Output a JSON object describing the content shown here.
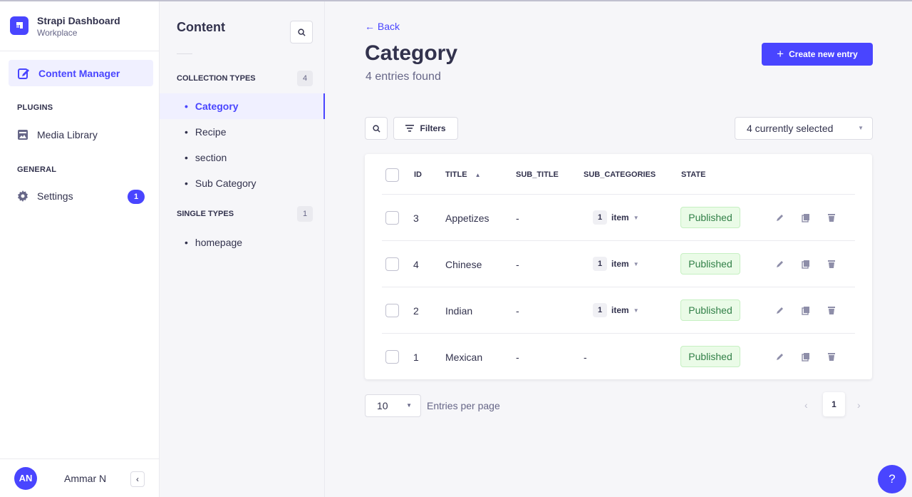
{
  "brand": {
    "title": "Strapi Dashboard",
    "subtitle": "Workplace"
  },
  "mainnav": {
    "active_item": "Content Manager",
    "plugins_label": "PLUGINS",
    "media_library": "Media Library",
    "general_label": "GENERAL",
    "settings": "Settings",
    "settings_badge": "1"
  },
  "user": {
    "initials": "AN",
    "name": "Ammar N",
    "collapse_glyph": "‹"
  },
  "subnav": {
    "title": "Content",
    "collection_label": "COLLECTION TYPES",
    "collection_count": "4",
    "collection_items": [
      "Category",
      "Recipe",
      "section",
      "Sub Category"
    ],
    "single_label": "SINGLE TYPES",
    "single_count": "1",
    "single_items": [
      "homepage"
    ],
    "bullet": "•"
  },
  "header": {
    "back": "← Back",
    "title": "Category",
    "subtitle": "4 entries found",
    "create_button": "Create new entry",
    "create_plus": "+"
  },
  "toolbar": {
    "filters": "Filters",
    "columns_select": "4 currently selected"
  },
  "table": {
    "headers": {
      "id": "ID",
      "title": "TITLE",
      "sort_glyph": "▲",
      "sub_title": "SUB_TITLE",
      "sub_categories": "SUB_CATEGORIES",
      "state": "STATE"
    },
    "rows": [
      {
        "id": "3",
        "title": "Appetizes",
        "sub_title": "-",
        "count": "1",
        "items": "item",
        "has_items": true,
        "state": "Published"
      },
      {
        "id": "4",
        "title": "Chinese",
        "sub_title": "-",
        "count": "1",
        "items": "item",
        "has_items": true,
        "state": "Published"
      },
      {
        "id": "2",
        "title": "Indian",
        "sub_title": "-",
        "count": "1",
        "items": "item",
        "has_items": true,
        "state": "Published"
      },
      {
        "id": "1",
        "title": "Mexican",
        "sub_title": "-",
        "sub_categories": "-",
        "has_items": false,
        "state": "Published"
      }
    ]
  },
  "pagination": {
    "page_size": "10",
    "entries_label": "Entries per page",
    "current_page": "1",
    "prev_glyph": "‹",
    "next_glyph": "›"
  },
  "help": "?",
  "colors": {
    "accent": "#4945ff",
    "success_bg": "#eafbe7",
    "success_text": "#328048",
    "page_bg": "#f6f6f9"
  }
}
